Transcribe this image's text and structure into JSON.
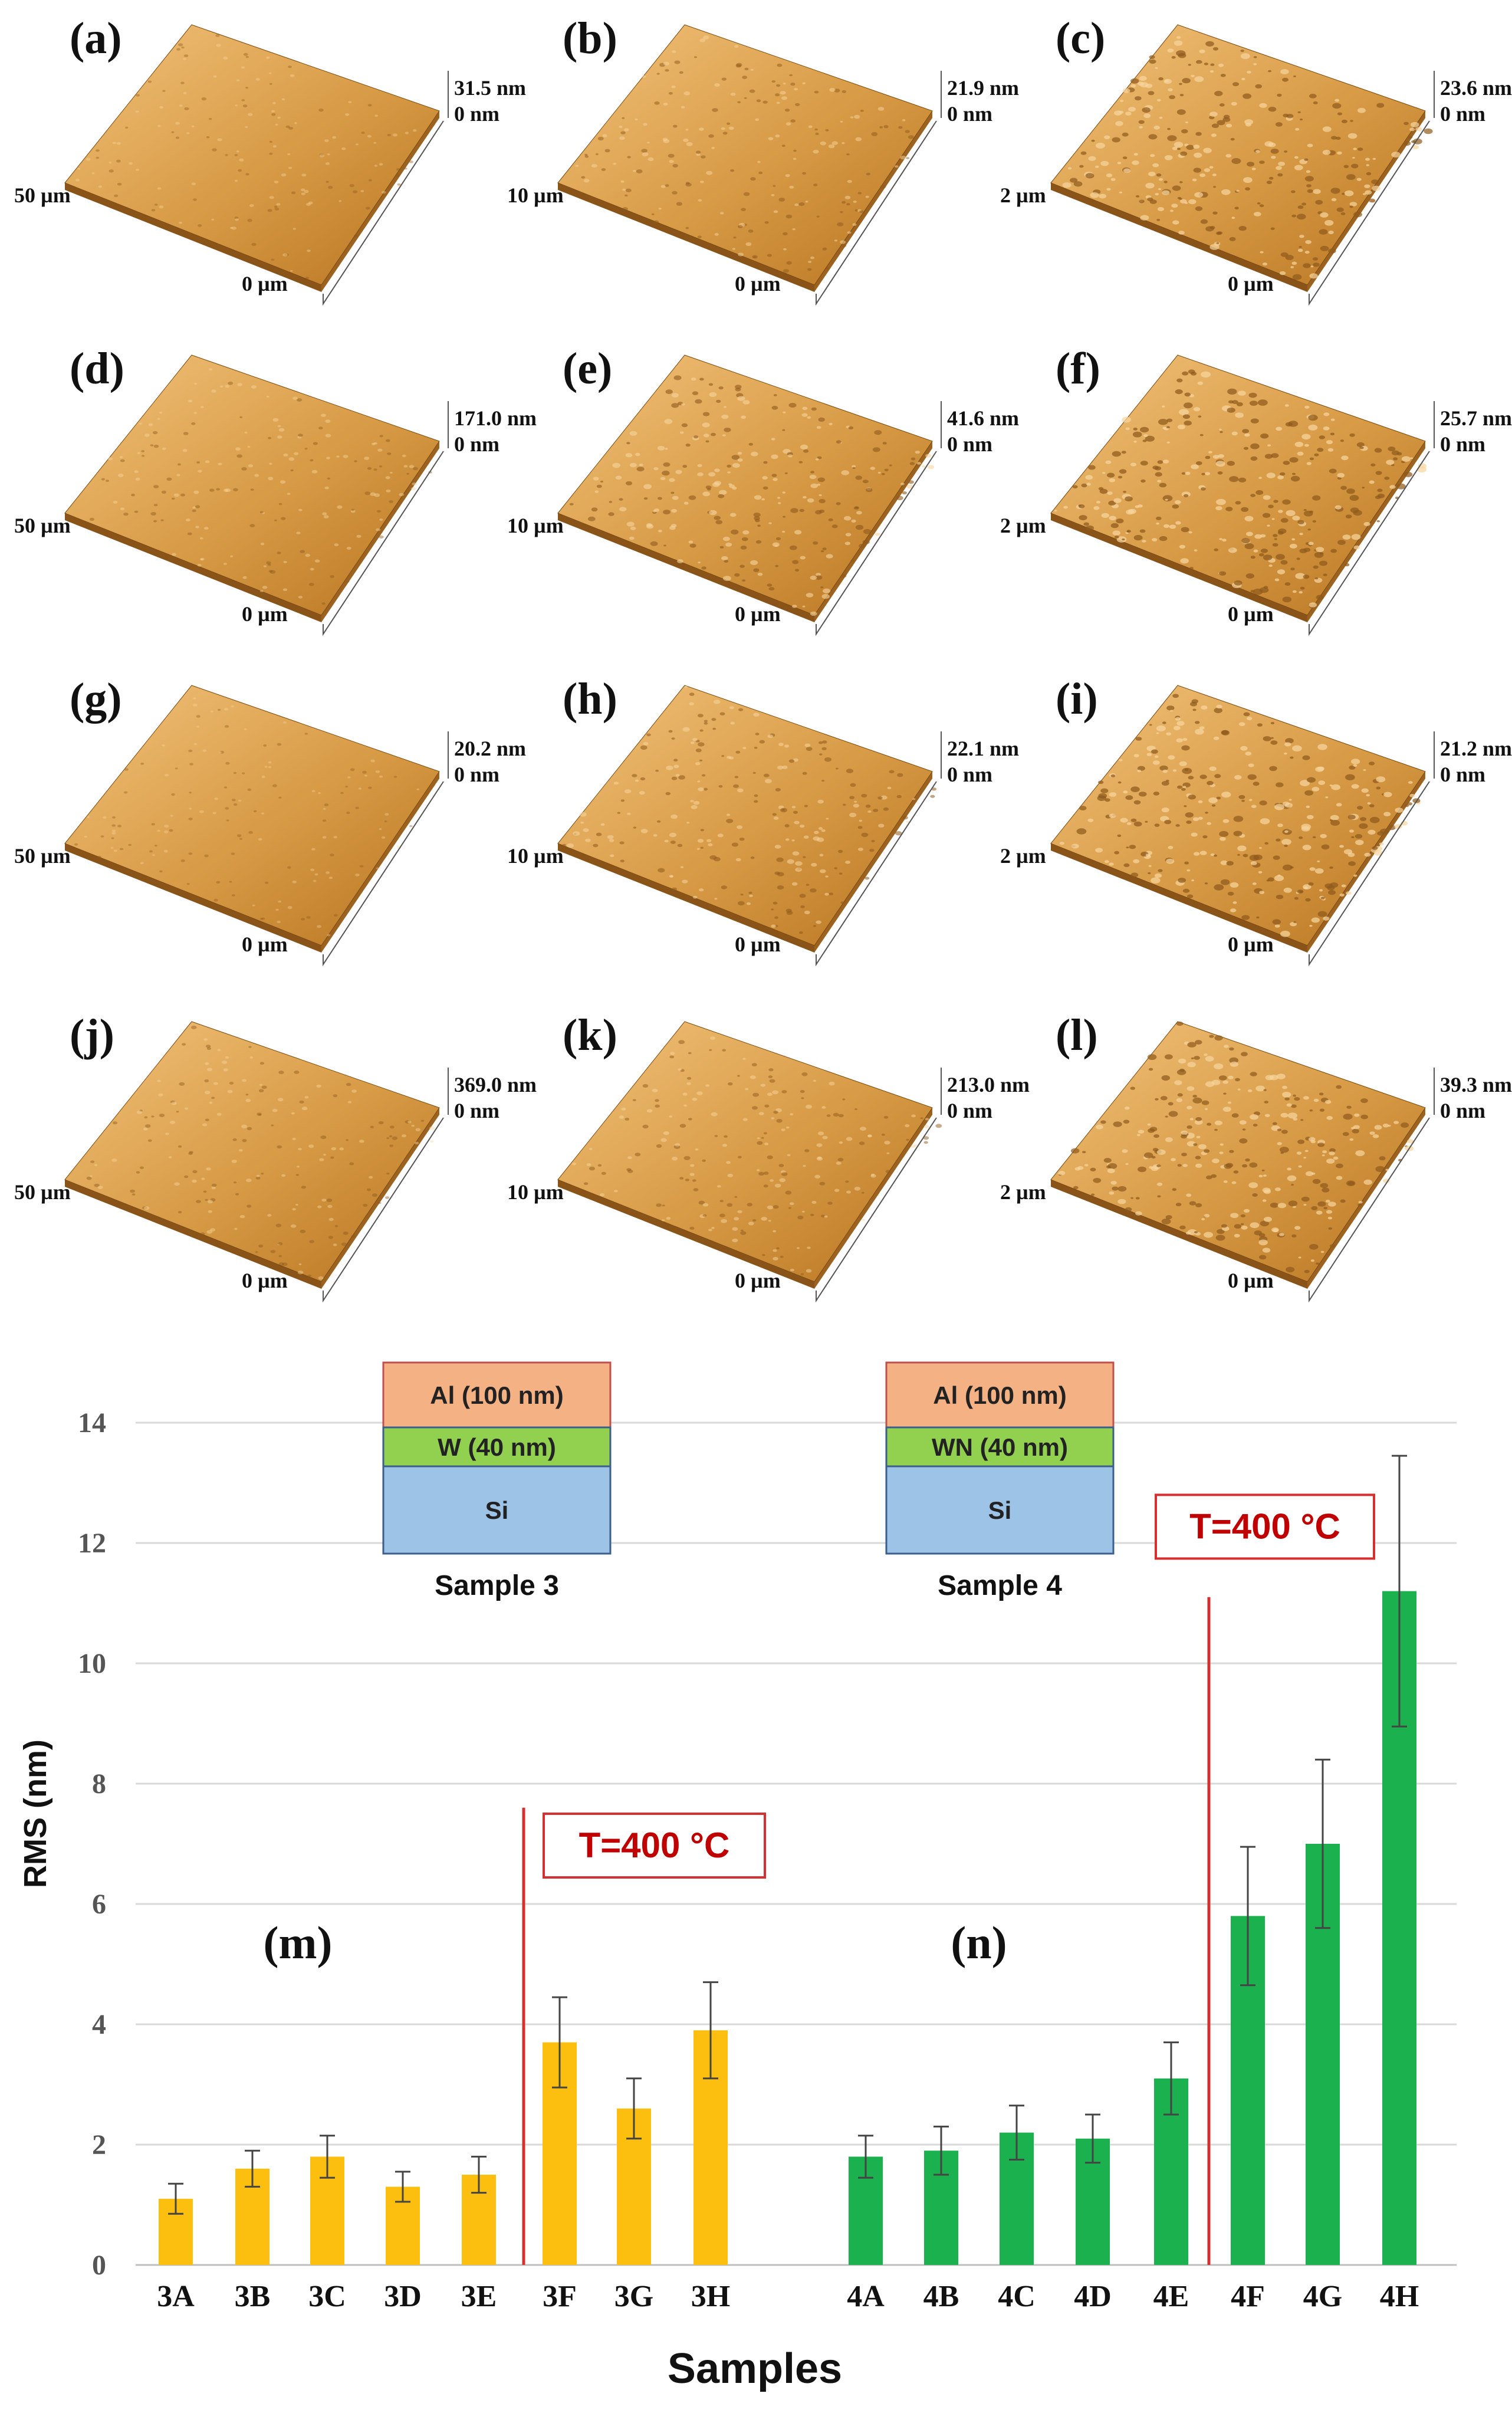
{
  "colors": {
    "afm_light": "#f2c27a",
    "afm_mid": "#d79a45",
    "afm_dark": "#b87421",
    "bar_sample3": "#fdbf0f",
    "bar_sample4": "#1bb14e",
    "divider": "#d62f2f",
    "annotation_text": "#c00000",
    "layer_al": "#f4b183",
    "layer_w": "#92d050",
    "layer_si": "#9dc3e6",
    "grid": "#d9d9d9"
  },
  "afm_panels": [
    {
      "label": "(a)",
      "z_max": "31.5 nm",
      "z_min": "0 nm",
      "scan_size": "50 µm",
      "origin": "0 µm"
    },
    {
      "label": "(b)",
      "z_max": "21.9 nm",
      "z_min": "0 nm",
      "scan_size": "10 µm",
      "origin": "0 µm"
    },
    {
      "label": "(c)",
      "z_max": "23.6 nm",
      "z_min": "0 nm",
      "scan_size": "2 µm",
      "origin": "0 µm"
    },
    {
      "label": "(d)",
      "z_max": "171.0 nm",
      "z_min": "0 nm",
      "scan_size": "50 µm",
      "origin": "0 µm"
    },
    {
      "label": "(e)",
      "z_max": "41.6 nm",
      "z_min": "0 nm",
      "scan_size": "10 µm",
      "origin": "0 µm"
    },
    {
      "label": "(f)",
      "z_max": "25.7 nm",
      "z_min": "0 nm",
      "scan_size": "2 µm",
      "origin": "0 µm"
    },
    {
      "label": "(g)",
      "z_max": "20.2 nm",
      "z_min": "0 nm",
      "scan_size": "50 µm",
      "origin": "0 µm"
    },
    {
      "label": "(h)",
      "z_max": "22.1 nm",
      "z_min": "0 nm",
      "scan_size": "10 µm",
      "origin": "0 µm"
    },
    {
      "label": "(i)",
      "z_max": "21.2 nm",
      "z_min": "0 nm",
      "scan_size": "2 µm",
      "origin": "0 µm"
    },
    {
      "label": "(j)",
      "z_max": "369.0 nm",
      "z_min": "0 nm",
      "scan_size": "50 µm",
      "origin": "0 µm"
    },
    {
      "label": "(k)",
      "z_max": "213.0 nm",
      "z_min": "0 nm",
      "scan_size": "10 µm",
      "origin": "0 µm"
    },
    {
      "label": "(l)",
      "z_max": "39.3 nm",
      "z_min": "0 nm",
      "scan_size": "2 µm",
      "origin": "0 µm"
    }
  ],
  "chart_data": {
    "type": "bar",
    "title": "",
    "xlabel": "Samples",
    "ylabel": "RMS (nm)",
    "ylim": [
      0,
      15
    ],
    "yticks": [
      0,
      2,
      4,
      6,
      8,
      10,
      12,
      14
    ],
    "grid": true,
    "series": [
      {
        "name": "Sample 3",
        "label": "(m)",
        "categories": [
          "3A",
          "3B",
          "3C",
          "3D",
          "3E",
          "3F",
          "3G",
          "3H"
        ],
        "values": [
          1.1,
          1.6,
          1.8,
          1.3,
          1.5,
          3.7,
          2.6,
          3.9
        ],
        "errors": [
          0.25,
          0.3,
          0.35,
          0.25,
          0.3,
          0.75,
          0.5,
          0.8
        ]
      },
      {
        "name": "Sample 4",
        "label": "(n)",
        "categories": [
          "4A",
          "4B",
          "4C",
          "4D",
          "4E",
          "4F",
          "4G",
          "4H"
        ],
        "values": [
          1.8,
          1.9,
          2.2,
          2.1,
          3.1,
          5.8,
          7.0,
          11.2
        ],
        "errors": [
          0.35,
          0.4,
          0.45,
          0.4,
          0.6,
          1.15,
          1.4,
          2.25
        ]
      }
    ],
    "annotations": [
      {
        "text": "T=400 °C",
        "divider_between": [
          "3E",
          "3F"
        ]
      },
      {
        "text": "T=400 °C",
        "divider_between": [
          "4E",
          "4F"
        ]
      }
    ],
    "stacks": [
      {
        "caption": "Sample 3",
        "layers": [
          "Al (100 nm)",
          "W (40 nm)",
          "Si"
        ]
      },
      {
        "caption": "Sample 4",
        "layers": [
          "Al (100 nm)",
          "WN (40 nm)",
          "Si"
        ]
      }
    ]
  }
}
